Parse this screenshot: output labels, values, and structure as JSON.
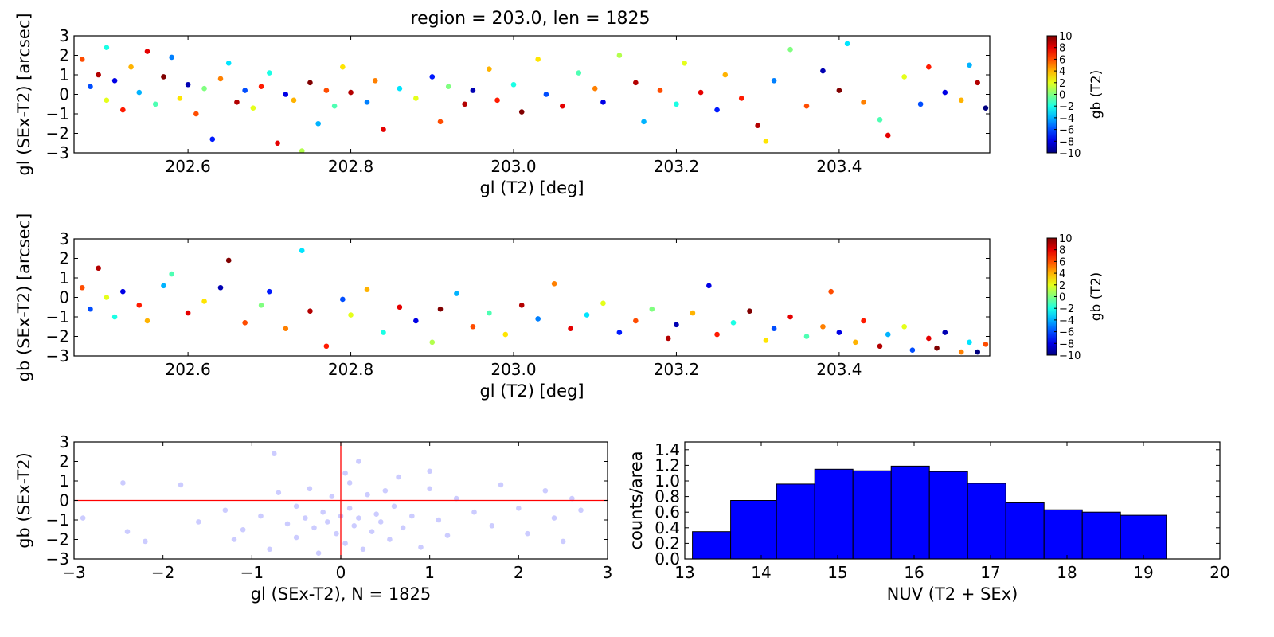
{
  "figure": {
    "title": "region = 203.0, len = 1825"
  },
  "chart_data": [
    {
      "id": "dl",
      "type": "scatter",
      "xlabel": "gl (T2) [deg]",
      "ylabel": "gl (SEx-T2) [arcsec]",
      "xlim": [
        202.46,
        203.585
      ],
      "ylim": [
        -3,
        3
      ],
      "xticks": [
        202.6,
        202.8,
        203.0,
        203.2,
        203.4
      ],
      "xtick_labels": [
        "202.6",
        "202.8",
        "203.0",
        "203.2",
        "203.4"
      ],
      "yticks": [
        -3,
        -2,
        -1,
        0,
        1,
        2,
        3
      ],
      "ytick_labels": [
        "−3",
        "−2",
        "−1",
        "0",
        "1",
        "2",
        "3"
      ],
      "color_by": "gb (T2)",
      "colorbar": {
        "label": "gb (T2)",
        "range": [
          -10,
          10
        ],
        "ticks": [
          10,
          8,
          6,
          4,
          2,
          0,
          -2,
          -4,
          -6,
          -8,
          -10
        ],
        "tick_labels": [
          "10",
          "8",
          "6",
          "4",
          "2",
          "0",
          "−2",
          "−4",
          "−6",
          "−8",
          "−10"
        ],
        "colormap": "jet"
      },
      "points": [
        [
          202.47,
          1.8,
          6
        ],
        [
          202.48,
          0.4,
          -6
        ],
        [
          202.49,
          1.0,
          9
        ],
        [
          202.5,
          -0.3,
          2
        ],
        [
          202.5,
          2.4,
          -2
        ],
        [
          202.51,
          0.7,
          -8
        ],
        [
          202.52,
          -0.8,
          7
        ],
        [
          202.53,
          1.4,
          4
        ],
        [
          202.54,
          0.1,
          -4
        ],
        [
          202.55,
          2.2,
          8
        ],
        [
          202.56,
          -0.5,
          -1
        ],
        [
          202.57,
          0.9,
          10
        ],
        [
          202.58,
          1.9,
          -5
        ],
        [
          202.59,
          -0.2,
          3
        ],
        [
          202.6,
          0.5,
          -9
        ],
        [
          202.61,
          -1.0,
          6
        ],
        [
          202.62,
          0.3,
          0
        ],
        [
          202.63,
          -2.3,
          -7
        ],
        [
          202.64,
          0.8,
          5
        ],
        [
          202.65,
          1.6,
          -3
        ],
        [
          202.66,
          -0.4,
          9
        ],
        [
          202.67,
          0.2,
          -6
        ],
        [
          202.68,
          -0.7,
          2
        ],
        [
          202.69,
          0.4,
          7
        ],
        [
          202.7,
          1.1,
          -2
        ],
        [
          202.71,
          -2.5,
          8
        ],
        [
          202.72,
          0.0,
          -8
        ],
        [
          202.73,
          -0.3,
          4
        ],
        [
          202.74,
          -2.9,
          1
        ],
        [
          202.75,
          0.6,
          10
        ],
        [
          202.76,
          -1.5,
          -4
        ],
        [
          202.77,
          0.2,
          6
        ],
        [
          202.78,
          -0.6,
          -1
        ],
        [
          202.79,
          1.4,
          3
        ],
        [
          202.8,
          0.1,
          9
        ],
        [
          202.82,
          -0.4,
          -5
        ],
        [
          202.83,
          0.7,
          5
        ],
        [
          202.84,
          -1.8,
          8
        ],
        [
          202.86,
          0.3,
          -3
        ],
        [
          202.88,
          -0.2,
          2
        ],
        [
          202.9,
          0.9,
          -7
        ],
        [
          202.91,
          -1.4,
          6
        ],
        [
          202.92,
          0.4,
          0
        ],
        [
          202.94,
          -0.5,
          9
        ],
        [
          202.95,
          0.2,
          -9
        ],
        [
          202.97,
          1.3,
          4
        ],
        [
          202.98,
          -0.3,
          7
        ],
        [
          203.0,
          0.5,
          -2
        ],
        [
          203.01,
          -0.9,
          10
        ],
        [
          203.03,
          1.8,
          3
        ],
        [
          203.04,
          0.0,
          -6
        ],
        [
          203.06,
          -0.6,
          8
        ],
        [
          203.08,
          1.1,
          -1
        ],
        [
          203.1,
          0.3,
          5
        ],
        [
          203.11,
          -0.4,
          -8
        ],
        [
          203.13,
          2.0,
          1
        ],
        [
          203.15,
          0.6,
          9
        ],
        [
          203.16,
          -1.4,
          -4
        ],
        [
          203.18,
          0.2,
          6
        ],
        [
          203.2,
          -0.5,
          -2
        ],
        [
          203.21,
          1.6,
          2
        ],
        [
          203.23,
          0.1,
          8
        ],
        [
          203.25,
          -0.8,
          -7
        ],
        [
          203.26,
          1.0,
          4
        ],
        [
          203.28,
          -0.2,
          7
        ],
        [
          203.3,
          -1.6,
          9
        ],
        [
          203.31,
          -2.4,
          3
        ],
        [
          203.32,
          0.7,
          -5
        ],
        [
          203.34,
          2.3,
          0
        ],
        [
          203.36,
          -0.6,
          6
        ],
        [
          203.38,
          1.2,
          -9
        ],
        [
          203.4,
          0.2,
          10
        ],
        [
          203.41,
          2.6,
          -3
        ],
        [
          203.43,
          -0.4,
          5
        ],
        [
          203.45,
          -1.3,
          -1
        ],
        [
          203.46,
          -2.1,
          8
        ],
        [
          203.48,
          0.9,
          2
        ],
        [
          203.5,
          -0.5,
          -6
        ],
        [
          203.51,
          1.4,
          7
        ],
        [
          203.53,
          0.1,
          -8
        ],
        [
          203.55,
          -0.3,
          4
        ],
        [
          203.56,
          1.5,
          -4
        ],
        [
          203.57,
          0.6,
          9
        ],
        [
          203.58,
          -0.7,
          -10
        ]
      ]
    },
    {
      "id": "db",
      "type": "scatter",
      "xlabel": "gl (T2) [deg]",
      "ylabel": "gb (SEx-T2) [arcsec]",
      "xlim": [
        202.46,
        203.585
      ],
      "ylim": [
        -3,
        3
      ],
      "xticks": [
        202.6,
        202.8,
        203.0,
        203.2,
        203.4
      ],
      "xtick_labels": [
        "202.6",
        "202.8",
        "203.0",
        "203.2",
        "203.4"
      ],
      "yticks": [
        -3,
        -2,
        -1,
        0,
        1,
        2,
        3
      ],
      "ytick_labels": [
        "−3",
        "−2",
        "−1",
        "0",
        "1",
        "2",
        "3"
      ],
      "color_by": "gb (T2)",
      "colorbar": {
        "label": "gb (T2)",
        "range": [
          -10,
          10
        ],
        "ticks": [
          10,
          8,
          6,
          4,
          2,
          0,
          -2,
          -4,
          -6,
          -8,
          -10
        ],
        "tick_labels": [
          "10",
          "8",
          "6",
          "4",
          "2",
          "0",
          "−2",
          "−4",
          "−6",
          "−8",
          "−10"
        ],
        "colormap": "jet"
      },
      "points": [
        [
          202.47,
          0.5,
          6
        ],
        [
          202.48,
          -0.6,
          -6
        ],
        [
          202.49,
          1.5,
          9
        ],
        [
          202.5,
          0.0,
          2
        ],
        [
          202.51,
          -1.0,
          -2
        ],
        [
          202.52,
          0.3,
          -8
        ],
        [
          202.54,
          -0.4,
          7
        ],
        [
          202.55,
          -1.2,
          4
        ],
        [
          202.57,
          0.6,
          -4
        ],
        [
          202.58,
          1.2,
          -1
        ],
        [
          202.6,
          -0.8,
          8
        ],
        [
          202.62,
          -0.2,
          3
        ],
        [
          202.64,
          0.5,
          -9
        ],
        [
          202.65,
          1.9,
          10
        ],
        [
          202.67,
          -1.3,
          6
        ],
        [
          202.69,
          -0.4,
          0
        ],
        [
          202.7,
          0.3,
          -7
        ],
        [
          202.72,
          -1.6,
          5
        ],
        [
          202.74,
          2.4,
          -3
        ],
        [
          202.75,
          -0.7,
          9
        ],
        [
          202.77,
          -2.5,
          7
        ],
        [
          202.79,
          -0.1,
          -6
        ],
        [
          202.8,
          -0.9,
          2
        ],
        [
          202.82,
          0.4,
          4
        ],
        [
          202.84,
          -1.8,
          -2
        ],
        [
          202.86,
          -0.5,
          8
        ],
        [
          202.88,
          -1.2,
          -8
        ],
        [
          202.9,
          -2.3,
          1
        ],
        [
          202.91,
          -0.6,
          10
        ],
        [
          202.93,
          0.2,
          -4
        ],
        [
          202.95,
          -1.5,
          6
        ],
        [
          202.97,
          -0.8,
          -1
        ],
        [
          202.99,
          -1.9,
          3
        ],
        [
          203.01,
          -0.4,
          9
        ],
        [
          203.03,
          -1.1,
          -5
        ],
        [
          203.05,
          0.7,
          5
        ],
        [
          203.07,
          -1.6,
          8
        ],
        [
          203.09,
          -0.9,
          -3
        ],
        [
          203.11,
          -0.3,
          2
        ],
        [
          203.13,
          -1.8,
          -7
        ],
        [
          203.15,
          -1.2,
          6
        ],
        [
          203.17,
          -0.6,
          0
        ],
        [
          203.19,
          -2.1,
          9
        ],
        [
          203.2,
          -1.4,
          -9
        ],
        [
          203.22,
          -0.8,
          4
        ],
        [
          203.24,
          0.6,
          -8
        ],
        [
          203.25,
          -1.9,
          7
        ],
        [
          203.27,
          -1.3,
          -2
        ],
        [
          203.29,
          -0.7,
          10
        ],
        [
          203.31,
          -2.2,
          3
        ],
        [
          203.32,
          -1.6,
          -6
        ],
        [
          203.34,
          -1.0,
          8
        ],
        [
          203.36,
          -2.0,
          -1
        ],
        [
          203.38,
          -1.5,
          5
        ],
        [
          203.39,
          0.3,
          6
        ],
        [
          203.4,
          -1.8,
          -8
        ],
        [
          203.42,
          -2.3,
          4
        ],
        [
          203.43,
          -1.2,
          7
        ],
        [
          203.45,
          -2.5,
          9
        ],
        [
          203.46,
          -1.9,
          -4
        ],
        [
          203.48,
          -1.5,
          2
        ],
        [
          203.49,
          -2.7,
          -6
        ],
        [
          203.51,
          -2.1,
          8
        ],
        [
          203.52,
          -2.6,
          10
        ],
        [
          203.53,
          -1.8,
          -9
        ],
        [
          203.55,
          -2.8,
          5
        ],
        [
          203.56,
          -2.3,
          -3
        ],
        [
          203.57,
          -2.8,
          -10
        ],
        [
          203.58,
          -2.4,
          6
        ]
      ]
    },
    {
      "id": "offsets",
      "type": "scatter",
      "xlabel": "gl (SEx-T2), N = 1825",
      "ylabel": "gb (SEx-T2)",
      "xlim": [
        -3,
        3
      ],
      "ylim": [
        -3,
        3
      ],
      "xticks": [
        -3,
        -2,
        -1,
        0,
        1,
        2,
        3
      ],
      "xtick_labels": [
        "−3",
        "−2",
        "−1",
        "0",
        "1",
        "2",
        "3"
      ],
      "yticks": [
        -3,
        -2,
        -1,
        0,
        1,
        2,
        3
      ],
      "ytick_labels": [
        "−3",
        "−2",
        "−1",
        "0",
        "1",
        "2",
        "3"
      ],
      "point_color": "#0000ff",
      "point_alpha": 0.2,
      "reference_lines": {
        "x": 0,
        "y": 0,
        "color": "#ff0000"
      },
      "points": [
        [
          -2.9,
          -0.9
        ],
        [
          -2.45,
          0.9
        ],
        [
          -2.4,
          -1.6
        ],
        [
          -2.2,
          -2.1
        ],
        [
          -1.8,
          0.8
        ],
        [
          -1.6,
          -1.1
        ],
        [
          -1.3,
          -0.5
        ],
        [
          -1.2,
          -2.0
        ],
        [
          -1.1,
          -1.5
        ],
        [
          -0.9,
          -0.8
        ],
        [
          -0.8,
          -2.5
        ],
        [
          -0.7,
          0.4
        ],
        [
          -0.6,
          -1.2
        ],
        [
          -0.5,
          -0.3
        ],
        [
          -0.5,
          -1.9
        ],
        [
          -0.4,
          -0.9
        ],
        [
          -0.35,
          0.6
        ],
        [
          -0.3,
          -1.4
        ],
        [
          -0.25,
          -2.7
        ],
        [
          -0.2,
          -0.6
        ],
        [
          -0.15,
          -1.1
        ],
        [
          -0.1,
          0.2
        ],
        [
          -0.05,
          -1.7
        ],
        [
          0.0,
          -0.8
        ],
        [
          0.05,
          -2.2
        ],
        [
          0.1,
          0.9
        ],
        [
          0.1,
          -0.4
        ],
        [
          0.15,
          -1.3
        ],
        [
          0.2,
          2.0
        ],
        [
          0.2,
          -0.9
        ],
        [
          0.25,
          -2.5
        ],
        [
          0.3,
          0.3
        ],
        [
          0.35,
          -1.6
        ],
        [
          0.4,
          -0.7
        ],
        [
          0.45,
          -1.1
        ],
        [
          0.5,
          0.5
        ],
        [
          0.55,
          -2.0
        ],
        [
          0.6,
          -0.3
        ],
        [
          0.7,
          -1.4
        ],
        [
          0.8,
          -0.8
        ],
        [
          0.9,
          -2.4
        ],
        [
          1.0,
          0.6
        ],
        [
          1.1,
          -1.0
        ],
        [
          1.2,
          -1.8
        ],
        [
          1.3,
          0.1
        ],
        [
          1.5,
          -0.6
        ],
        [
          1.7,
          -1.3
        ],
        [
          1.8,
          0.8
        ],
        [
          2.0,
          -0.4
        ],
        [
          2.1,
          -1.7
        ],
        [
          2.3,
          0.5
        ],
        [
          2.4,
          -0.9
        ],
        [
          2.5,
          -2.1
        ],
        [
          2.6,
          0.1
        ],
        [
          2.7,
          -0.5
        ],
        [
          -0.75,
          2.4
        ],
        [
          0.05,
          1.4
        ],
        [
          0.65,
          1.2
        ],
        [
          1.0,
          1.5
        ]
      ]
    },
    {
      "id": "hist",
      "type": "bar",
      "xlabel": "NUV (T2 + SEx)",
      "ylabel": "counts/area",
      "xlim": [
        13,
        20
      ],
      "ylim": [
        0,
        1.5
      ],
      "xticks": [
        13,
        14,
        15,
        16,
        17,
        18,
        19,
        20
      ],
      "xtick_labels": [
        "13",
        "14",
        "15",
        "16",
        "17",
        "18",
        "19",
        "20"
      ],
      "yticks": [
        0.0,
        0.2,
        0.4,
        0.6,
        0.8,
        1.0,
        1.2,
        1.4
      ],
      "ytick_labels": [
        "0.0",
        "0.2",
        "0.4",
        "0.6",
        "0.8",
        "1.0",
        "1.2",
        "1.4"
      ],
      "bar_color": "#0000ff",
      "bin_edges": [
        13.1,
        13.6,
        14.2,
        14.7,
        15.2,
        15.7,
        16.2,
        16.7,
        17.2,
        17.7,
        18.2,
        18.7,
        19.3
      ],
      "values": [
        0.35,
        0.75,
        0.96,
        1.15,
        1.13,
        1.19,
        1.12,
        0.97,
        0.72,
        0.63,
        0.6,
        0.56
      ]
    }
  ]
}
